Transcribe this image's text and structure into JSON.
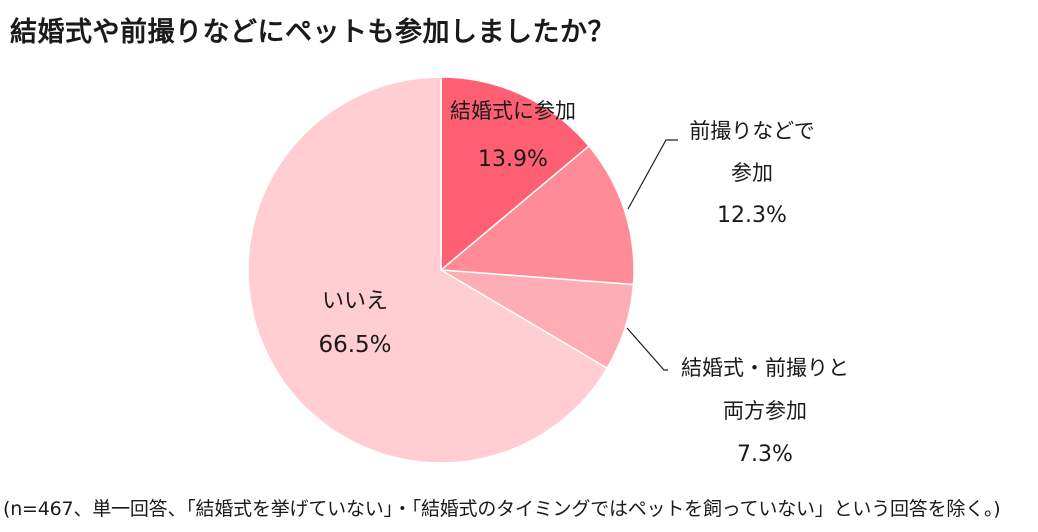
{
  "title": "結婚式や前撮りなどにペットも参加しましたか？",
  "footnote": "(n=467、単一回答、「結婚式を挙げていない」・「結婚式のタイミングではペットを飼っていない」という回答を除く。)",
  "chart_data": {
    "type": "pie",
    "title": "結婚式や前撮りなどにペットも参加しましたか？",
    "start_angle_deg": 0,
    "direction": "clockwise",
    "slices": [
      {
        "label_lines": [
          "結婚式に参加"
        ],
        "value_label": "13.9%",
        "value": 13.9,
        "color": "#ff5f73"
      },
      {
        "label_lines": [
          "前撮りなどで",
          "参加"
        ],
        "value_label": "12.3%",
        "value": 12.3,
        "color": "#ff8b97"
      },
      {
        "label_lines": [
          "結婚式・前撮りと",
          "両方参加"
        ],
        "value_label": "7.3%",
        "value": 7.3,
        "color": "#ffadb5"
      },
      {
        "label_lines": [
          "いいえ"
        ],
        "value_label": "66.5%",
        "value": 66.5,
        "color": "#ffcdd2"
      }
    ]
  }
}
